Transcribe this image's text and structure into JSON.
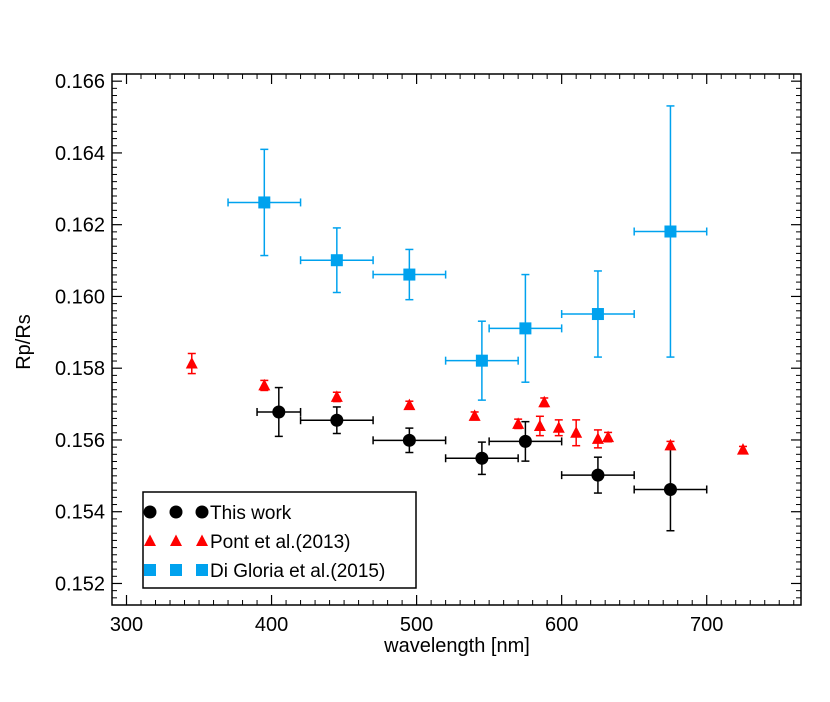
{
  "chart_data": {
    "type": "scatter",
    "title": "",
    "xlabel": "wavelength [nm]",
    "ylabel": "Rp/Rs",
    "xlim": [
      290,
      765
    ],
    "ylim": [
      0.1514,
      0.1662
    ],
    "xticks": [
      300,
      400,
      500,
      600,
      700
    ],
    "xtick_labels": [
      "300",
      "400",
      "500",
      "600",
      "700"
    ],
    "yticks": [
      0.152,
      0.154,
      0.156,
      0.158,
      0.16,
      0.162,
      0.164,
      0.166
    ],
    "ytick_labels": [
      "0.152",
      "0.154",
      "0.156",
      "0.158",
      "0.160",
      "0.162",
      "0.164",
      "0.166"
    ],
    "grid": false,
    "legend_position": "bottom-left",
    "series": [
      {
        "name": "This work",
        "marker": "circle",
        "color": "#000000",
        "points": [
          {
            "x": 405,
            "y": 0.15678,
            "xerr": 15,
            "yerr": 0.00068
          },
          {
            "x": 445,
            "y": 0.15655,
            "xerr": 25,
            "yerr": 0.00037
          },
          {
            "x": 495,
            "y": 0.15599,
            "xerr": 25,
            "yerr": 0.00034
          },
          {
            "x": 545,
            "y": 0.15549,
            "xerr": 25,
            "yerr": 0.00045
          },
          {
            "x": 575,
            "y": 0.15596,
            "xerr": 25,
            "yerr": 0.00055
          },
          {
            "x": 625,
            "y": 0.15502,
            "xerr": 25,
            "yerr": 0.0005
          },
          {
            "x": 675,
            "y": 0.15462,
            "xerr": 25,
            "yerr": 0.00115
          }
        ]
      },
      {
        "name": "Pont et al.(2013)",
        "marker": "triangle",
        "color": "#ff0000",
        "points": [
          {
            "x": 345,
            "y": 0.15813,
            "xerr": 0,
            "yerr": 0.00028
          },
          {
            "x": 395,
            "y": 0.15752,
            "xerr": 0,
            "yerr": 0.00014
          },
          {
            "x": 445,
            "y": 0.1572,
            "xerr": 0,
            "yerr": 0.00013
          },
          {
            "x": 495,
            "y": 0.15697,
            "xerr": 0,
            "yerr": 0.00011
          },
          {
            "x": 540,
            "y": 0.15667,
            "xerr": 0,
            "yerr": 0.00011
          },
          {
            "x": 570,
            "y": 0.15645,
            "xerr": 0,
            "yerr": 0.00013
          },
          {
            "x": 588,
            "y": 0.15705,
            "xerr": 0,
            "yerr": 0.00012
          },
          {
            "x": 585,
            "y": 0.15639,
            "xerr": 0,
            "yerr": 0.00027
          },
          {
            "x": 598,
            "y": 0.15634,
            "xerr": 0,
            "yerr": 0.00022
          },
          {
            "x": 610,
            "y": 0.1562,
            "xerr": 0,
            "yerr": 0.00036
          },
          {
            "x": 625,
            "y": 0.15603,
            "xerr": 0,
            "yerr": 0.00025
          },
          {
            "x": 632,
            "y": 0.15608,
            "xerr": 0,
            "yerr": 0.00013
          },
          {
            "x": 675,
            "y": 0.15585,
            "xerr": 0,
            "yerr": 0.00011
          },
          {
            "x": 725,
            "y": 0.15573,
            "xerr": 0,
            "yerr": 9e-05
          }
        ]
      },
      {
        "name": "Di Gloria et al.(2015)",
        "marker": "square",
        "color": "#00a2ee",
        "points": [
          {
            "x": 395,
            "y": 0.16262,
            "xerr": 25,
            "yerr": 0.00148
          },
          {
            "x": 445,
            "y": 0.16101,
            "xerr": 25,
            "yerr": 0.0009
          },
          {
            "x": 495,
            "y": 0.16061,
            "xerr": 25,
            "yerr": 0.0007
          },
          {
            "x": 545,
            "y": 0.15821,
            "xerr": 25,
            "yerr": 0.0011
          },
          {
            "x": 575,
            "y": 0.15911,
            "xerr": 25,
            "yerr": 0.0015
          },
          {
            "x": 625,
            "y": 0.15951,
            "xerr": 25,
            "yerr": 0.0012
          },
          {
            "x": 675,
            "y": 0.16181,
            "xerr": 25,
            "yerr": 0.0035
          }
        ]
      }
    ]
  }
}
